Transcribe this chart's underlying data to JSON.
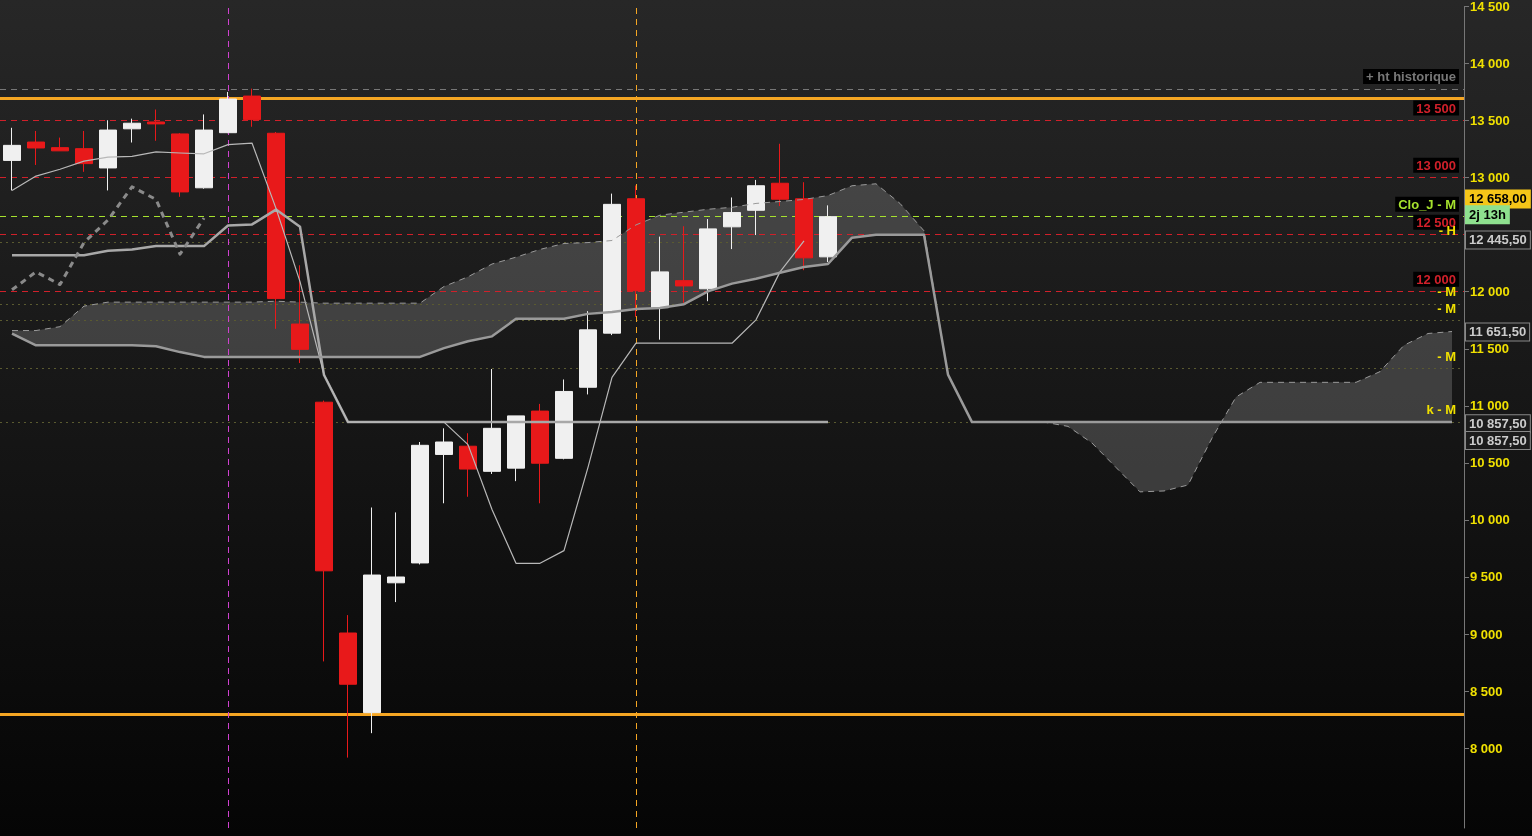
{
  "chart_data": {
    "type": "candlestick",
    "categories": [
      null,
      null,
      null,
      null,
      null,
      null,
      null,
      null,
      null,
      null,
      null,
      null,
      null,
      null,
      null,
      null,
      null,
      null,
      null,
      null,
      null,
      null,
      null,
      null,
      null,
      null,
      null,
      null,
      null,
      null,
      null,
      null,
      null,
      null,
      null,
      null,
      null,
      null,
      null,
      null,
      null,
      null,
      null,
      null,
      null,
      null,
      null,
      null,
      null,
      null,
      null,
      null,
      null,
      null,
      null,
      null,
      null,
      null,
      null,
      null,
      null
    ],
    "ohlc": [
      [
        13151,
        13437,
        12888,
        13283
      ],
      [
        13312,
        13409,
        13111,
        13260
      ],
      [
        13263,
        13351,
        13235,
        13235
      ],
      [
        13254,
        13409,
        13051,
        13123
      ],
      [
        13085,
        13503,
        12888,
        13417
      ],
      [
        13428,
        13517,
        13308,
        13477
      ],
      [
        13488,
        13597,
        13323,
        13471
      ],
      [
        13383,
        13390,
        12832,
        12875
      ],
      [
        12911,
        13554,
        12903,
        13417
      ],
      [
        13394,
        13751,
        13390,
        13689
      ],
      [
        13715,
        13780,
        13446,
        13509
      ],
      [
        13389,
        13400,
        11675,
        11940
      ],
      [
        11717,
        12232,
        11375,
        11495
      ],
      [
        11032,
        11046,
        8760,
        9554
      ],
      [
        9009,
        9166,
        7917,
        8560
      ],
      [
        8311,
        10109,
        8131,
        9517
      ],
      [
        9449,
        10066,
        9280,
        9500
      ],
      [
        9623,
        10683,
        9610,
        10654
      ],
      [
        10574,
        10803,
        10146,
        10683
      ],
      [
        10646,
        10760,
        10203,
        10446
      ],
      [
        10426,
        11323,
        10403,
        10803
      ],
      [
        10454,
        10912,
        10340,
        10912
      ],
      [
        10954,
        11017,
        10146,
        10497
      ],
      [
        10540,
        11231,
        10531,
        11126
      ],
      [
        11163,
        11830,
        11100,
        11666
      ],
      [
        11637,
        12860,
        11620,
        12766
      ],
      [
        12815,
        12931,
        11780,
        12009
      ],
      [
        11860,
        12483,
        11580,
        12174
      ],
      [
        12097,
        12574,
        11903,
        12051
      ],
      [
        12026,
        12637,
        11917,
        12551
      ],
      [
        12569,
        12826,
        12374,
        12694
      ],
      [
        12714,
        12980,
        12497,
        12929
      ],
      [
        12951,
        13297,
        12751,
        12811
      ],
      [
        12815,
        12960,
        12189,
        12297
      ],
      [
        12306,
        12757,
        12260,
        12658
      ],
      null,
      null,
      null,
      null,
      null,
      null,
      null,
      null,
      null,
      null,
      null,
      null,
      null,
      null,
      null,
      null,
      null,
      null,
      null,
      null,
      null,
      null,
      null,
      null,
      null,
      null
    ],
    "colors": [
      "#f0f0f0",
      "#e8191a",
      "#e8191a",
      "#e8191a",
      "#f0f0f0",
      "#f0f0f0",
      "#e8191a",
      "#e8191a",
      "#f0f0f0",
      "#f0f0f0",
      "#e8191a",
      "#e8191a",
      "#e8191a",
      "#e8191a",
      "#e8191a",
      "#f0f0f0",
      "#f0f0f0",
      "#f0f0f0",
      "#f0f0f0",
      "#e8191a",
      "#f0f0f0",
      "#f0f0f0",
      "#e8191a",
      "#f0f0f0",
      "#f0f0f0",
      "#f0f0f0",
      "#e8191a",
      "#f0f0f0",
      "#e8191a",
      "#f0f0f0",
      "#f0f0f0",
      "#f0f0f0",
      "#e8191a",
      "#e8191a",
      "#f0f0f0",
      null,
      null,
      null,
      null,
      null,
      null,
      null,
      null,
      null,
      null,
      null,
      null,
      null,
      null,
      null,
      null,
      null,
      null,
      null,
      null,
      null,
      null,
      null,
      null,
      null,
      null
    ],
    "series": [
      {
        "type": "line",
        "color": "#a8a8a8",
        "values": [
          12320,
          12320,
          12320,
          12320,
          12360,
          12370,
          12400,
          12400,
          12400,
          12580,
          12590,
          12720,
          12570,
          11270,
          10857.5,
          10857.5,
          10857.5,
          10857.5,
          10857.5,
          10857.5,
          10857.5,
          10857.5,
          10857.5,
          10857.5,
          10857.5,
          10857.5,
          10857.5,
          10857.5,
          10857.5,
          10857.5,
          10857.5,
          10857.5,
          10857.5,
          10857.5,
          10857.5,
          null,
          null,
          null,
          null,
          null,
          null,
          null,
          null,
          null,
          null,
          null,
          null,
          null,
          null,
          null,
          null,
          null,
          null,
          null,
          null,
          null,
          null,
          null,
          null,
          null,
          null
        ]
      },
      {
        "type": "line",
        "color": "#b8b8b8",
        "values": [
          12888,
          13014,
          13074,
          13145,
          13180,
          13186,
          13226,
          13216,
          13209,
          13289,
          13303,
          12731,
          12089,
          11274,
          10857.5,
          10857.5,
          10857.5,
          10857.5,
          10857.5,
          10660,
          10092,
          9620,
          9620,
          9731,
          10460,
          11249,
          11549,
          11549,
          11549,
          11549,
          11549,
          11754,
          12174,
          12445.5,
          null,
          null,
          null,
          null,
          null,
          null,
          null,
          null,
          null,
          null,
          null,
          null,
          null,
          null,
          null,
          null,
          null,
          null,
          null,
          null,
          null,
          null,
          null,
          null,
          null,
          null,
          null
        ]
      },
      {
        "type": "line",
        "color": "#8a8a8a",
        "line_style": "dashed",
        "values": [
          12017,
          12174,
          12063,
          12431,
          12629,
          12920,
          12809,
          12329,
          12646,
          null,
          null,
          null,
          null,
          null,
          null,
          null,
          null,
          null,
          null,
          null,
          null,
          null,
          null,
          null,
          null,
          null,
          null,
          null,
          null,
          null,
          null,
          null,
          null,
          null,
          null,
          null,
          null,
          null,
          null,
          null,
          null,
          null,
          null,
          null,
          null,
          null,
          null,
          null,
          null,
          null,
          null,
          null,
          null,
          null,
          null,
          null,
          null,
          null,
          null,
          null,
          null
        ]
      },
      {
        "type": "line",
        "color": "#9a9a9a",
        "line_style": "dashed",
        "values": [
          11660,
          11660,
          11694,
          11874,
          11909,
          11909,
          11909,
          11909,
          11909,
          11909,
          11909,
          11917,
          11909,
          11900,
          11900,
          11900,
          11900,
          11900,
          12046,
          12131,
          12243,
          12303,
          12371,
          12423,
          12431,
          12449,
          12586,
          12671,
          12697,
          12723,
          12740,
          12774,
          12791,
          12809,
          12843,
          12929,
          12946,
          12774,
          12534,
          11274,
          10857.5,
          10857.5,
          10857.5,
          10857.5,
          10820,
          10674,
          10460,
          10246,
          10254,
          10306,
          10717,
          11077,
          11206,
          11206,
          11206,
          11206,
          11206,
          11300,
          11531,
          11634,
          11651.5
        ]
      },
      {
        "type": "line",
        "color": "#9a9a9a",
        "values": [
          11634,
          11531,
          11531,
          11531,
          11531,
          11531,
          11523,
          11471,
          11429,
          11429,
          11429,
          11429,
          11429,
          11429,
          11429,
          11429,
          11429,
          11429,
          11506,
          11566,
          11609,
          11763,
          11763,
          11763,
          11806,
          11823,
          11849,
          11857,
          11891,
          12003,
          12071,
          12114,
          12166,
          12217,
          12243,
          12474,
          12500,
          12500,
          12500,
          11274,
          10857.5,
          10857.5,
          10857.5,
          10857.5,
          10857.5,
          10857.5,
          10857.5,
          10857.5,
          10857.5,
          10857.5,
          10857.5,
          10857.5,
          10857.5,
          10857.5,
          10857.5,
          10857.5,
          10857.5,
          10857.5,
          10857.5,
          10857.5,
          10857.5
        ],
        "lower": [
          11634,
          11531,
          11531,
          11531,
          11531,
          11531,
          11523,
          11471,
          11429,
          11429,
          11429,
          11429,
          11429,
          11429,
          11429,
          11429,
          11429,
          11429,
          11506,
          11566,
          11609,
          11763,
          11763,
          11763,
          11806,
          11823,
          11849,
          11857,
          11891,
          12003,
          12071,
          12114,
          12166,
          12217,
          12243,
          12474,
          12500,
          12500,
          12500,
          11274,
          10857.5,
          10857.5,
          10857.5,
          10857.5,
          10857.5,
          10857.5,
          10857.5,
          10857.5,
          10857.5,
          10857.5,
          10857.5,
          10857.5,
          10857.5,
          10857.5,
          10857.5,
          10857.5,
          10857.5,
          10857.5,
          10857.5,
          10857.5,
          10857.5
        ],
        "upper": [
          11660,
          11660,
          11694,
          11874,
          11909,
          11909,
          11909,
          11909,
          11909,
          11909,
          11909,
          11917,
          11909,
          11900,
          11900,
          11900,
          11900,
          11900,
          12046,
          12131,
          12243,
          12303,
          12371,
          12423,
          12431,
          12449,
          12586,
          12671,
          12697,
          12723,
          12740,
          12774,
          12791,
          12809,
          12843,
          12929,
          12946,
          12774,
          12534,
          11274,
          10857.5,
          10857.5,
          10857.5,
          10857.5,
          10820,
          10674,
          10460,
          10246,
          10254,
          10306,
          10717,
          11077,
          11206,
          11206,
          11206,
          11206,
          11206,
          11300,
          11531,
          11634,
          11651.5
        ]
      }
    ],
    "ylim": [
      7300,
      14500
    ],
    "yticks": [
      {
        "value": 8000,
        "label": "8 000"
      },
      {
        "value": 8500,
        "label": "8 500"
      },
      {
        "value": 9000,
        "label": "9 000"
      },
      {
        "value": 9500,
        "label": "9 500"
      },
      {
        "value": 10000,
        "label": "10 000"
      },
      {
        "value": 10500,
        "label": "10 500"
      },
      {
        "value": 11000,
        "label": "11 000"
      },
      {
        "value": 11500,
        "label": "11 500"
      },
      {
        "value": 12000,
        "label": "12 000"
      },
      {
        "value": 12500,
        "label": null
      },
      {
        "value": 13000,
        "label": "13 000"
      },
      {
        "value": 13500,
        "label": "13 500"
      },
      {
        "value": 14000,
        "label": "14 000"
      },
      {
        "value": 14500,
        "label": "14 500"
      }
    ],
    "ref_lines": [
      {
        "axis": "y",
        "value": 13777,
        "label": "+ ht historique",
        "color": "#777777",
        "line_style": "dashed"
      },
      {
        "axis": "y",
        "value": 13700,
        "label": null,
        "color": "#f5a623",
        "line_style": "solid"
      },
      {
        "axis": "y",
        "value": 8300,
        "label": null,
        "color": "#f5a623",
        "line_style": "solid"
      },
      {
        "axis": "y",
        "value": 13500,
        "label": "13 500",
        "color": "#d0202a",
        "line_style": "dashed"
      },
      {
        "axis": "y",
        "value": 13000,
        "label": "13 000",
        "color": "#d0202a",
        "line_style": "dashed"
      },
      {
        "axis": "y",
        "value": 12500,
        "label": "12 500",
        "color": "#d0202a",
        "line_style": "dashed"
      },
      {
        "axis": "y",
        "value": 12000,
        "label": "12 000",
        "color": "#d0202a",
        "line_style": "dashed"
      },
      {
        "axis": "y",
        "value": 12658,
        "label": "Clo_J - M",
        "color": "#a6e22e",
        "line_style": "dashed"
      },
      {
        "axis": "y",
        "value": 12430,
        "label": "- H",
        "color": "#5a5a30",
        "line_style": "dotted"
      },
      {
        "axis": "y",
        "value": 11891,
        "label": "- M",
        "color": "#5a5a30",
        "line_style": "dotted"
      },
      {
        "axis": "y",
        "value": 11746,
        "label": "- M",
        "color": "#5a5a30",
        "line_style": "dotted"
      },
      {
        "axis": "y",
        "value": 11326,
        "label": "- M",
        "color": "#5a5a30",
        "line_style": "dotted"
      },
      {
        "axis": "y",
        "value": 10857.5,
        "label": "k - M",
        "color": "#5a5a30",
        "line_style": "dotted"
      }
    ],
    "annotations": [
      "12 658,00",
      "2j 13h",
      "12 445,50",
      "11 651,50",
      "10 857,50",
      "10 857,50"
    ],
    "grid": false
  }
}
